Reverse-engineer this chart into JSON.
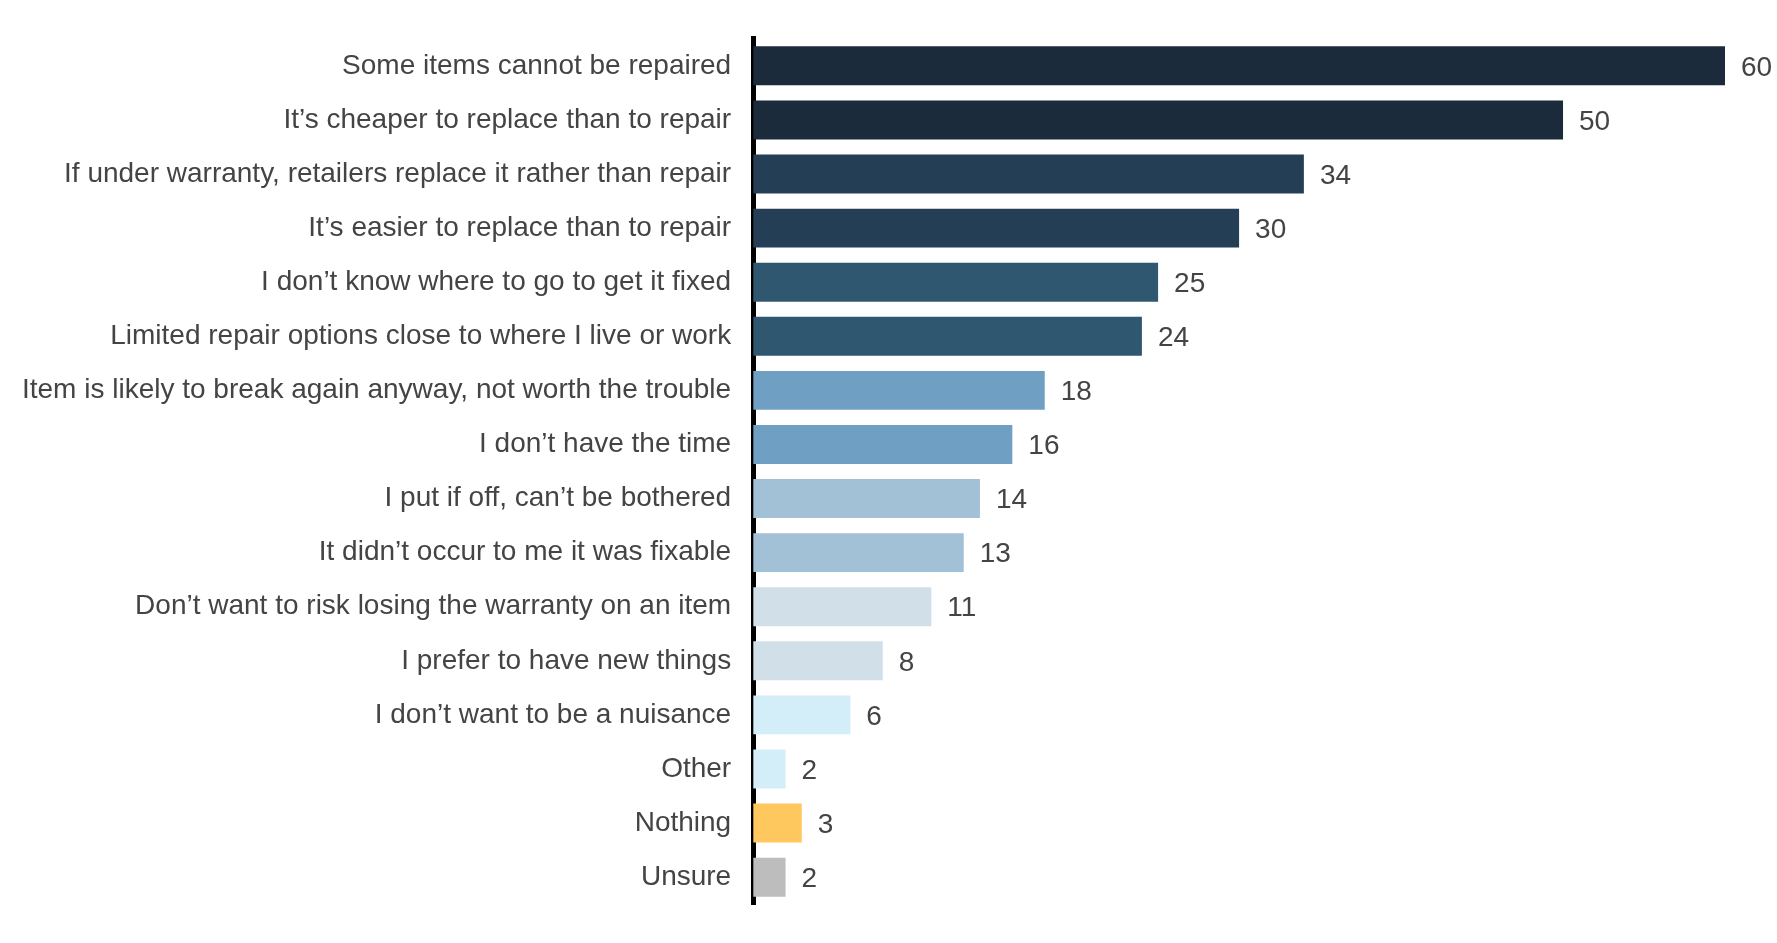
{
  "chart_data": {
    "type": "bar",
    "orientation": "horizontal",
    "categories": [
      "Some items cannot be repaired",
      "It’s cheaper to replace than to repair",
      "If under warranty, retailers replace it rather than repair",
      "It’s easier to replace than to repair",
      "I don’t know where to go to get it fixed",
      "Limited repair options close to where I live or work",
      "Item is likely to break again anyway, not worth the trouble",
      "I don’t have the time",
      "I put if off, can’t be bothered",
      "It didn’t occur to me it was fixable",
      "Don’t want to risk losing the warranty on an item",
      "I prefer to have new things",
      "I don’t want to be a nuisance",
      "Other",
      "Nothing",
      "Unsure"
    ],
    "values": [
      60,
      50,
      34,
      30,
      25,
      24,
      18,
      16,
      14,
      13,
      11,
      8,
      6,
      2,
      3,
      2
    ],
    "colors": [
      "#1b2b3b",
      "#1b2b3b",
      "#243f55",
      "#243f55",
      "#2f5870",
      "#2f5870",
      "#6f9fc2",
      "#6f9fc2",
      "#a3c1d6",
      "#a3c1d6",
      "#d0dfe8",
      "#d0dfe8",
      "#d3eef8",
      "#d3eef8",
      "#ffc85e",
      "#bdbdbd"
    ],
    "data_labels": true,
    "legend": false
  }
}
